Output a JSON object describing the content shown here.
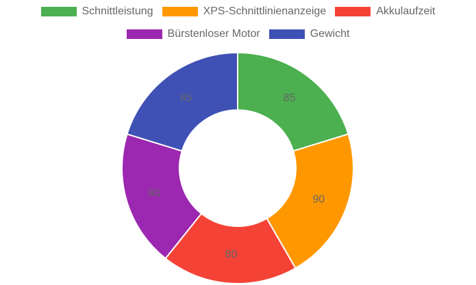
{
  "chart_data": {
    "type": "pie",
    "variant": "doughnut",
    "categories": [
      "Schnittleistung",
      "XPS-Schnittlinienanzeige",
      "Akkulaufzeit",
      "Bürstenloser Motor",
      "Gewicht"
    ],
    "values": [
      85,
      90,
      80,
      80,
      85
    ],
    "colors": [
      "#4caf50",
      "#ff9800",
      "#f44336",
      "#9c27b0",
      "#3f51b5"
    ],
    "legend_position": "top",
    "data_labels": true
  }
}
